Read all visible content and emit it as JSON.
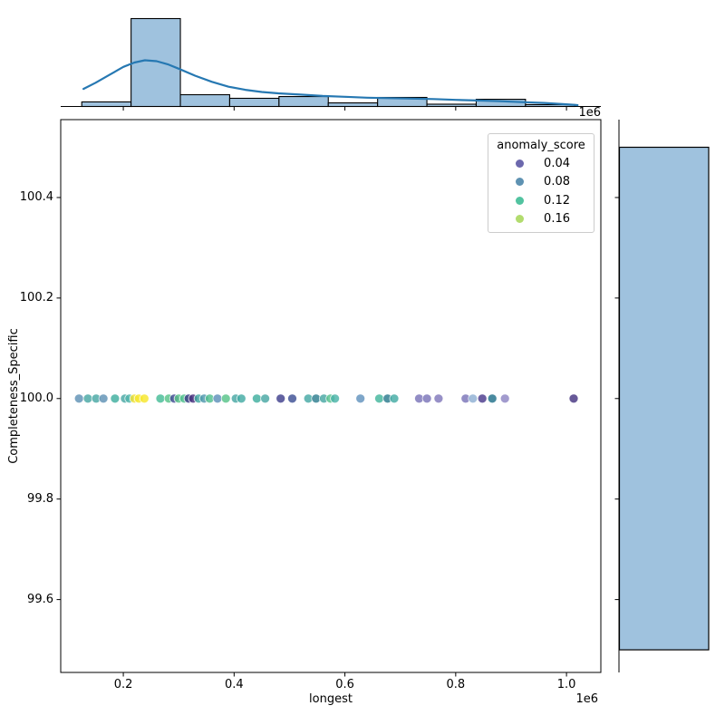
{
  "figure_type": "jointplot",
  "colors": {
    "hist_fill": "#9fc2de",
    "hist_edge": "#000000",
    "kde_line": "#2678b2",
    "spine": "#000000",
    "legend_border": "#cccccc",
    "background": "#ffffff"
  },
  "chart_data": {
    "type": "scatter",
    "xlabel": "longest",
    "ylabel": "Completeness_Specific",
    "x_offset_text": "1e6",
    "xlim": [
      87000,
      1062000
    ],
    "ylim": [
      99.455,
      100.555
    ],
    "x_ticks": [
      200000,
      400000,
      600000,
      800000,
      1000000
    ],
    "x_tick_labels": [
      "0.2",
      "0.4",
      "0.6",
      "0.8",
      "1.0"
    ],
    "y_ticks": [
      100.4,
      100.2,
      100.0,
      99.8,
      99.6
    ],
    "y_tick_labels": [
      "100.4",
      "100.2",
      "100.0",
      "99.8",
      "99.6"
    ],
    "grid": false,
    "legend": {
      "title": "anomaly_score",
      "position": "upper right",
      "entries": [
        {
          "label": "0.04",
          "color": "#6c68ad"
        },
        {
          "label": "0.08",
          "color": "#5e92b2"
        },
        {
          "label": "0.12",
          "color": "#52c3a0"
        },
        {
          "label": "0.16",
          "color": "#b2dc6e"
        }
      ]
    },
    "points": [
      {
        "x": 120000,
        "y": 100.0,
        "color": "#5f91b5"
      },
      {
        "x": 136000,
        "y": 100.0,
        "color": "#48a7a3"
      },
      {
        "x": 151000,
        "y": 100.0,
        "color": "#48a7a3"
      },
      {
        "x": 164000,
        "y": 100.0,
        "color": "#5f91b5"
      },
      {
        "x": 185000,
        "y": 100.0,
        "color": "#3fae9f"
      },
      {
        "x": 203000,
        "y": 100.0,
        "color": "#48a7a3"
      },
      {
        "x": 211000,
        "y": 100.0,
        "color": "#52b5ab"
      },
      {
        "x": 220000,
        "y": 100.0,
        "color": "#f2e235"
      },
      {
        "x": 228000,
        "y": 100.0,
        "color": "#f6e72c"
      },
      {
        "x": 238000,
        "y": 100.0,
        "color": "#f6e72c"
      },
      {
        "x": 267000,
        "y": 100.0,
        "color": "#45bc96"
      },
      {
        "x": 282000,
        "y": 100.0,
        "color": "#58c389"
      },
      {
        "x": 292000,
        "y": 100.0,
        "color": "#414b93"
      },
      {
        "x": 300000,
        "y": 100.0,
        "color": "#58c389"
      },
      {
        "x": 310000,
        "y": 100.0,
        "color": "#4fc08d"
      },
      {
        "x": 318000,
        "y": 100.0,
        "color": "#3a3a85"
      },
      {
        "x": 326000,
        "y": 100.0,
        "color": "#472f7d"
      },
      {
        "x": 336000,
        "y": 100.0,
        "color": "#41a8a0"
      },
      {
        "x": 346000,
        "y": 100.0,
        "color": "#4f97ad"
      },
      {
        "x": 356000,
        "y": 100.0,
        "color": "#52c08d"
      },
      {
        "x": 370000,
        "y": 100.0,
        "color": "#5e90ba"
      },
      {
        "x": 385000,
        "y": 100.0,
        "color": "#58c389"
      },
      {
        "x": 403000,
        "y": 100.0,
        "color": "#48a7a3"
      },
      {
        "x": 413000,
        "y": 100.0,
        "color": "#43aba4"
      },
      {
        "x": 441000,
        "y": 100.0,
        "color": "#3fae9f"
      },
      {
        "x": 456000,
        "y": 100.0,
        "color": "#48a7a3"
      },
      {
        "x": 484000,
        "y": 100.0,
        "color": "#3f3f8c"
      },
      {
        "x": 505000,
        "y": 100.0,
        "color": "#3d4f94"
      },
      {
        "x": 534000,
        "y": 100.0,
        "color": "#46a8a5"
      },
      {
        "x": 548000,
        "y": 100.0,
        "color": "#2e7e8f"
      },
      {
        "x": 562000,
        "y": 100.0,
        "color": "#48a7a3"
      },
      {
        "x": 574000,
        "y": 100.0,
        "color": "#55c18b"
      },
      {
        "x": 582000,
        "y": 100.0,
        "color": "#4bb3a8"
      },
      {
        "x": 628000,
        "y": 100.0,
        "color": "#6292bd"
      },
      {
        "x": 662000,
        "y": 100.0,
        "color": "#43b69c"
      },
      {
        "x": 677000,
        "y": 100.0,
        "color": "#2b7a8e"
      },
      {
        "x": 689000,
        "y": 100.0,
        "color": "#43aba4"
      },
      {
        "x": 734000,
        "y": 100.0,
        "color": "#7a74b8"
      },
      {
        "x": 748000,
        "y": 100.0,
        "color": "#7a74b8"
      },
      {
        "x": 769000,
        "y": 100.0,
        "color": "#8078bb"
      },
      {
        "x": 818000,
        "y": 100.0,
        "color": "#7a74b8"
      },
      {
        "x": 831000,
        "y": 100.0,
        "color": "#8fb0d3"
      },
      {
        "x": 848000,
        "y": 100.0,
        "color": "#4a3a8c"
      },
      {
        "x": 866000,
        "y": 100.0,
        "color": "#21708a"
      },
      {
        "x": 889000,
        "y": 100.0,
        "color": "#8d85c3"
      },
      {
        "x": 1013000,
        "y": 100.0,
        "color": "#453581"
      }
    ],
    "marginal_top": {
      "type": "histogram+kde",
      "bin_edges": [
        125000,
        214000,
        303000,
        392000,
        481000,
        570000,
        659000,
        748000,
        837000,
        926000,
        1015000
      ],
      "heights_norm": [
        0.052,
        1.0,
        0.134,
        0.093,
        0.113,
        0.041,
        0.103,
        0.026,
        0.082,
        0.021
      ],
      "kde_points": [
        [
          128000,
          0.2
        ],
        [
          150000,
          0.27
        ],
        [
          175000,
          0.36
        ],
        [
          200000,
          0.45
        ],
        [
          220000,
          0.5
        ],
        [
          239000,
          0.526
        ],
        [
          260000,
          0.515
        ],
        [
          280000,
          0.48
        ],
        [
          300000,
          0.43
        ],
        [
          330000,
          0.35
        ],
        [
          360000,
          0.28
        ],
        [
          390000,
          0.225
        ],
        [
          420000,
          0.19
        ],
        [
          450000,
          0.165
        ],
        [
          480000,
          0.15
        ],
        [
          520000,
          0.135
        ],
        [
          560000,
          0.12
        ],
        [
          600000,
          0.11
        ],
        [
          640000,
          0.1
        ],
        [
          680000,
          0.095
        ],
        [
          720000,
          0.09
        ],
        [
          760000,
          0.085
        ],
        [
          800000,
          0.075
        ],
        [
          840000,
          0.068
        ],
        [
          880000,
          0.06
        ],
        [
          920000,
          0.05
        ],
        [
          960000,
          0.04
        ],
        [
          1000000,
          0.025
        ],
        [
          1020000,
          0.015
        ]
      ]
    },
    "marginal_right": {
      "type": "histogram",
      "bins": [
        {
          "from": 99.5,
          "to": 100.5,
          "fraction": 1.0
        }
      ]
    }
  }
}
